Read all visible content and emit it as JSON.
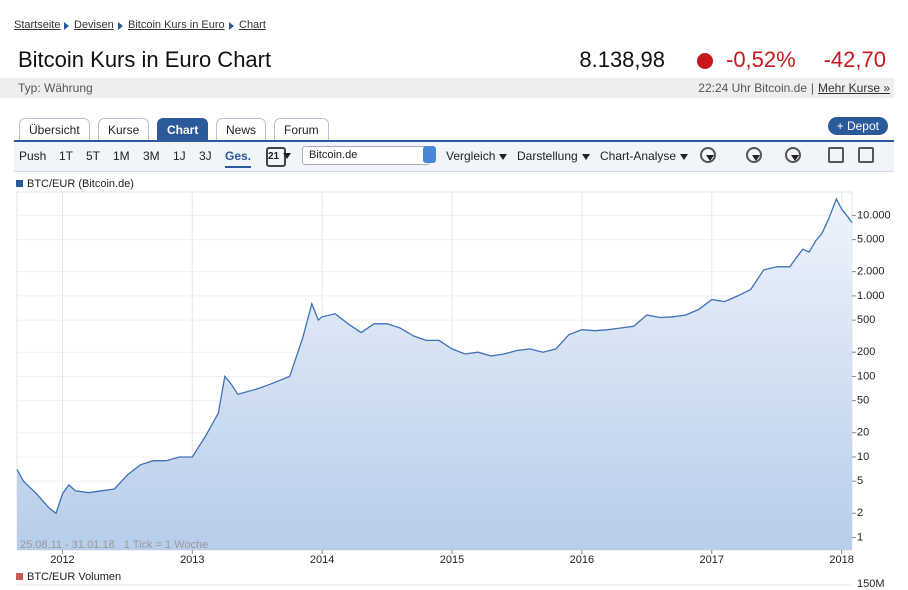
{
  "breadcrumb": [
    "Startseite",
    "Devisen",
    "Bitcoin Kurs in Euro",
    "Chart"
  ],
  "header": {
    "title": "Bitcoin Kurs in Euro Chart",
    "price": "8.138,98",
    "change_percent": "-0,52%",
    "change_absolute": "-42,70",
    "type": "Typ: Währung",
    "timestamp": "22:24 Uhr Bitcoin.de",
    "separator": "|",
    "more_link": "Mehr Kurse »"
  },
  "tabs": [
    "Übersicht",
    "Kurse",
    "Chart",
    "News",
    "Forum"
  ],
  "active_tab": 2,
  "depot_button": "+ Depot",
  "toolbar": {
    "ranges": [
      "Push",
      "1T",
      "5T",
      "1M",
      "3M",
      "1J",
      "3J",
      "Ges."
    ],
    "active_range": 7,
    "calendar_day": "21",
    "exchange": "Bitcoin.de",
    "menus": [
      "Vergleich",
      "Darstellung",
      "Chart-Analyse"
    ]
  },
  "chart_data": {
    "type": "line",
    "log_scale": true,
    "grid": true,
    "footnote": "25.08.11 - 31.01.18   1 Tick = 1 Woche",
    "volume_legend": "BTC/EUR Volumen",
    "volume_tick": "150M",
    "x": [
      2011.65,
      2011.7,
      2011.8,
      2011.9,
      2011.95,
      2012.0,
      2012.05,
      2012.1,
      2012.2,
      2012.3,
      2012.4,
      2012.5,
      2012.6,
      2012.7,
      2012.8,
      2012.9,
      2013.0,
      2013.1,
      2013.2,
      2013.25,
      2013.3,
      2013.35,
      2013.5,
      2013.6,
      2013.75,
      2013.85,
      2013.92,
      2013.97,
      2014.0,
      2014.1,
      2014.2,
      2014.3,
      2014.4,
      2014.5,
      2014.6,
      2014.7,
      2014.8,
      2014.9,
      2015.0,
      2015.1,
      2015.2,
      2015.3,
      2015.4,
      2015.5,
      2015.6,
      2015.7,
      2015.8,
      2015.9,
      2016.0,
      2016.1,
      2016.2,
      2016.3,
      2016.4,
      2016.5,
      2016.6,
      2016.7,
      2016.8,
      2016.9,
      2017.0,
      2017.1,
      2017.2,
      2017.3,
      2017.4,
      2017.5,
      2017.6,
      2017.7,
      2017.75,
      2017.8,
      2017.85,
      2017.9,
      2017.96,
      2018.0,
      2018.05,
      2018.08
    ],
    "series": [
      {
        "name": "BTC/EUR (Bitcoin.de)",
        "color": "#3f72b8",
        "values": [
          7,
          5,
          3.5,
          2.3,
          2.0,
          3.5,
          4.5,
          3.8,
          3.6,
          3.8,
          4,
          6,
          8,
          9,
          9,
          10,
          10,
          18,
          35,
          100,
          80,
          60,
          70,
          80,
          100,
          300,
          800,
          500,
          550,
          600,
          450,
          350,
          450,
          450,
          400,
          320,
          280,
          280,
          220,
          190,
          200,
          180,
          190,
          210,
          220,
          200,
          220,
          330,
          380,
          370,
          380,
          400,
          420,
          580,
          540,
          550,
          580,
          680,
          900,
          850,
          1000,
          1200,
          2100,
          2300,
          2300,
          3800,
          3500,
          4800,
          6000,
          9000,
          16000,
          12000,
          9500,
          8139
        ]
      }
    ],
    "xlim": [
      2011.65,
      2018.08
    ],
    "xticks": [
      2012,
      2013,
      2014,
      2015,
      2016,
      2017,
      2018
    ],
    "ylim": [
      0.7,
      19500
    ],
    "yticks": [
      1,
      2,
      5,
      10,
      20,
      50,
      100,
      200,
      500,
      {
        "value": 1000,
        "label": "1.000"
      },
      {
        "value": 2000,
        "label": "2.000"
      },
      {
        "value": 5000,
        "label": "5.000"
      },
      {
        "value": 10000,
        "label": "10.000"
      }
    ]
  }
}
